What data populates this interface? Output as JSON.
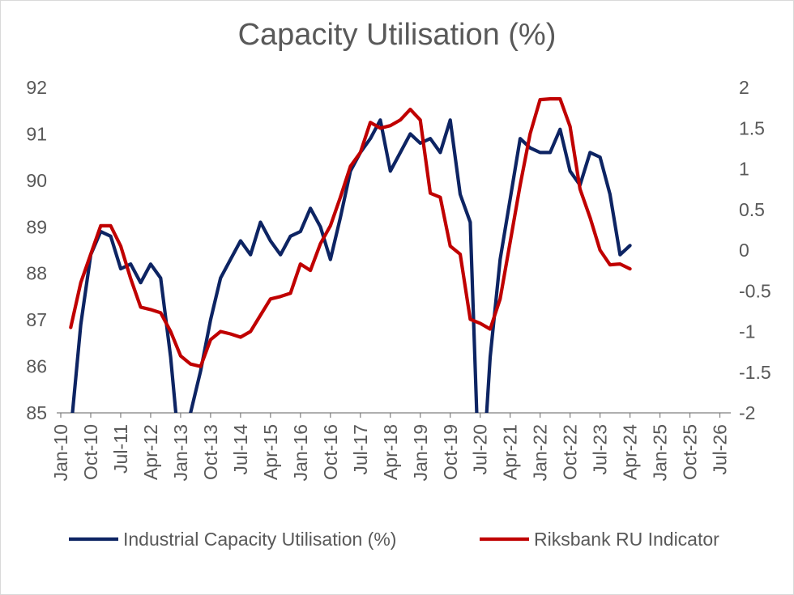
{
  "chart_data": {
    "type": "line",
    "title": "Capacity Utilisation (%)",
    "x_tick_labels": [
      "Jan-10",
      "Oct-10",
      "Jul-11",
      "Apr-12",
      "Jan-13",
      "Oct-13",
      "Jul-14",
      "Apr-15",
      "Jan-16",
      "Oct-16",
      "Jul-17",
      "Apr-18",
      "Jan-19",
      "Oct-19",
      "Jul-20",
      "Apr-21",
      "Jan-22",
      "Oct-22",
      "Jul-23",
      "Apr-24",
      "Jan-25",
      "Oct-25",
      "Jul-26"
    ],
    "y_left": {
      "min": 85,
      "max": 92,
      "ticks": [
        "92",
        "91",
        "90",
        "89",
        "88",
        "87",
        "86",
        "85"
      ]
    },
    "y_right": {
      "min": -2,
      "max": 2,
      "ticks": [
        "2",
        "1.5",
        "1",
        "0.5",
        "0",
        "-0.5",
        "-1",
        "-1.5",
        "-2"
      ]
    },
    "grid": false,
    "legend_position": "bottom",
    "series": [
      {
        "name": "Industrial Capacity Utilisation (%)",
        "axis": "left",
        "color": "#0d2463",
        "points": [
          [
            "2010-04",
            84.6
          ],
          [
            "2010-07",
            86.9
          ],
          [
            "2010-10",
            88.4
          ],
          [
            "2011-01",
            88.9
          ],
          [
            "2011-04",
            88.8
          ],
          [
            "2011-07",
            88.1
          ],
          [
            "2011-10",
            88.2
          ],
          [
            "2012-01",
            87.8
          ],
          [
            "2012-04",
            88.2
          ],
          [
            "2012-07",
            87.9
          ],
          [
            "2012-10",
            86.2
          ],
          [
            "2013-01",
            83.9
          ],
          [
            "2013-04",
            85.0
          ],
          [
            "2013-07",
            85.9
          ],
          [
            "2013-10",
            87.0
          ],
          [
            "2014-01",
            87.9
          ],
          [
            "2014-04",
            88.3
          ],
          [
            "2014-07",
            88.7
          ],
          [
            "2014-10",
            88.4
          ],
          [
            "2015-01",
            89.1
          ],
          [
            "2015-04",
            88.7
          ],
          [
            "2015-07",
            88.4
          ],
          [
            "2015-10",
            88.8
          ],
          [
            "2016-01",
            88.9
          ],
          [
            "2016-04",
            89.4
          ],
          [
            "2016-07",
            89.0
          ],
          [
            "2016-10",
            88.3
          ],
          [
            "2017-01",
            89.2
          ],
          [
            "2017-04",
            90.2
          ],
          [
            "2017-07",
            90.6
          ],
          [
            "2017-10",
            90.9
          ],
          [
            "2018-01",
            91.3
          ],
          [
            "2018-04",
            90.2
          ],
          [
            "2018-07",
            90.6
          ],
          [
            "2018-10",
            91.0
          ],
          [
            "2019-01",
            90.8
          ],
          [
            "2019-04",
            90.9
          ],
          [
            "2019-07",
            90.6
          ],
          [
            "2019-10",
            91.3
          ],
          [
            "2020-01",
            89.7
          ],
          [
            "2020-04",
            89.1
          ],
          [
            "2020-07",
            82.8
          ],
          [
            "2020-10",
            86.2
          ],
          [
            "2021-01",
            88.3
          ],
          [
            "2021-04",
            89.6
          ],
          [
            "2021-07",
            90.9
          ],
          [
            "2021-10",
            90.7
          ],
          [
            "2022-01",
            90.6
          ],
          [
            "2022-04",
            90.6
          ],
          [
            "2022-07",
            91.1
          ],
          [
            "2022-10",
            90.2
          ],
          [
            "2023-01",
            89.9
          ],
          [
            "2023-04",
            90.6
          ],
          [
            "2023-07",
            90.5
          ],
          [
            "2023-10",
            89.7
          ],
          [
            "2024-01",
            88.4
          ],
          [
            "2024-04",
            88.6
          ]
        ]
      },
      {
        "name": "Riksbank RU Indicator",
        "axis": "right",
        "color": "#c00000",
        "points": [
          [
            "2010-04",
            -0.95
          ],
          [
            "2010-07",
            -0.4
          ],
          [
            "2010-10",
            -0.05
          ],
          [
            "2011-01",
            0.3
          ],
          [
            "2011-04",
            0.3
          ],
          [
            "2011-07",
            0.05
          ],
          [
            "2011-10",
            -0.35
          ],
          [
            "2012-01",
            -0.7
          ],
          [
            "2012-04",
            -0.73
          ],
          [
            "2012-07",
            -0.77
          ],
          [
            "2012-10",
            -1.0
          ],
          [
            "2013-01",
            -1.3
          ],
          [
            "2013-04",
            -1.4
          ],
          [
            "2013-07",
            -1.43
          ],
          [
            "2013-10",
            -1.1
          ],
          [
            "2014-01",
            -1.0
          ],
          [
            "2014-04",
            -1.03
          ],
          [
            "2014-07",
            -1.07
          ],
          [
            "2014-10",
            -1.0
          ],
          [
            "2015-01",
            -0.8
          ],
          [
            "2015-04",
            -0.6
          ],
          [
            "2015-07",
            -0.57
          ],
          [
            "2015-10",
            -0.53
          ],
          [
            "2016-01",
            -0.17
          ],
          [
            "2016-04",
            -0.25
          ],
          [
            "2016-07",
            0.08
          ],
          [
            "2016-10",
            0.3
          ],
          [
            "2017-01",
            0.65
          ],
          [
            "2017-04",
            1.03
          ],
          [
            "2017-07",
            1.2
          ],
          [
            "2017-10",
            1.57
          ],
          [
            "2018-01",
            1.5
          ],
          [
            "2018-04",
            1.53
          ],
          [
            "2018-07",
            1.6
          ],
          [
            "2018-10",
            1.73
          ],
          [
            "2019-01",
            1.6
          ],
          [
            "2019-04",
            0.7
          ],
          [
            "2019-07",
            0.65
          ],
          [
            "2019-10",
            0.05
          ],
          [
            "2020-01",
            -0.05
          ],
          [
            "2020-04",
            -0.85
          ],
          [
            "2020-07",
            -0.9
          ],
          [
            "2020-10",
            -0.97
          ],
          [
            "2021-01",
            -0.6
          ],
          [
            "2021-04",
            0.1
          ],
          [
            "2021-07",
            0.8
          ],
          [
            "2021-10",
            1.43
          ],
          [
            "2022-01",
            1.85
          ],
          [
            "2022-04",
            1.86
          ],
          [
            "2022-07",
            1.86
          ],
          [
            "2022-10",
            1.52
          ],
          [
            "2023-01",
            0.75
          ],
          [
            "2023-04",
            0.4
          ],
          [
            "2023-07",
            0.0
          ],
          [
            "2023-10",
            -0.18
          ],
          [
            "2024-01",
            -0.17
          ],
          [
            "2024-04",
            -0.23
          ]
        ]
      }
    ]
  }
}
